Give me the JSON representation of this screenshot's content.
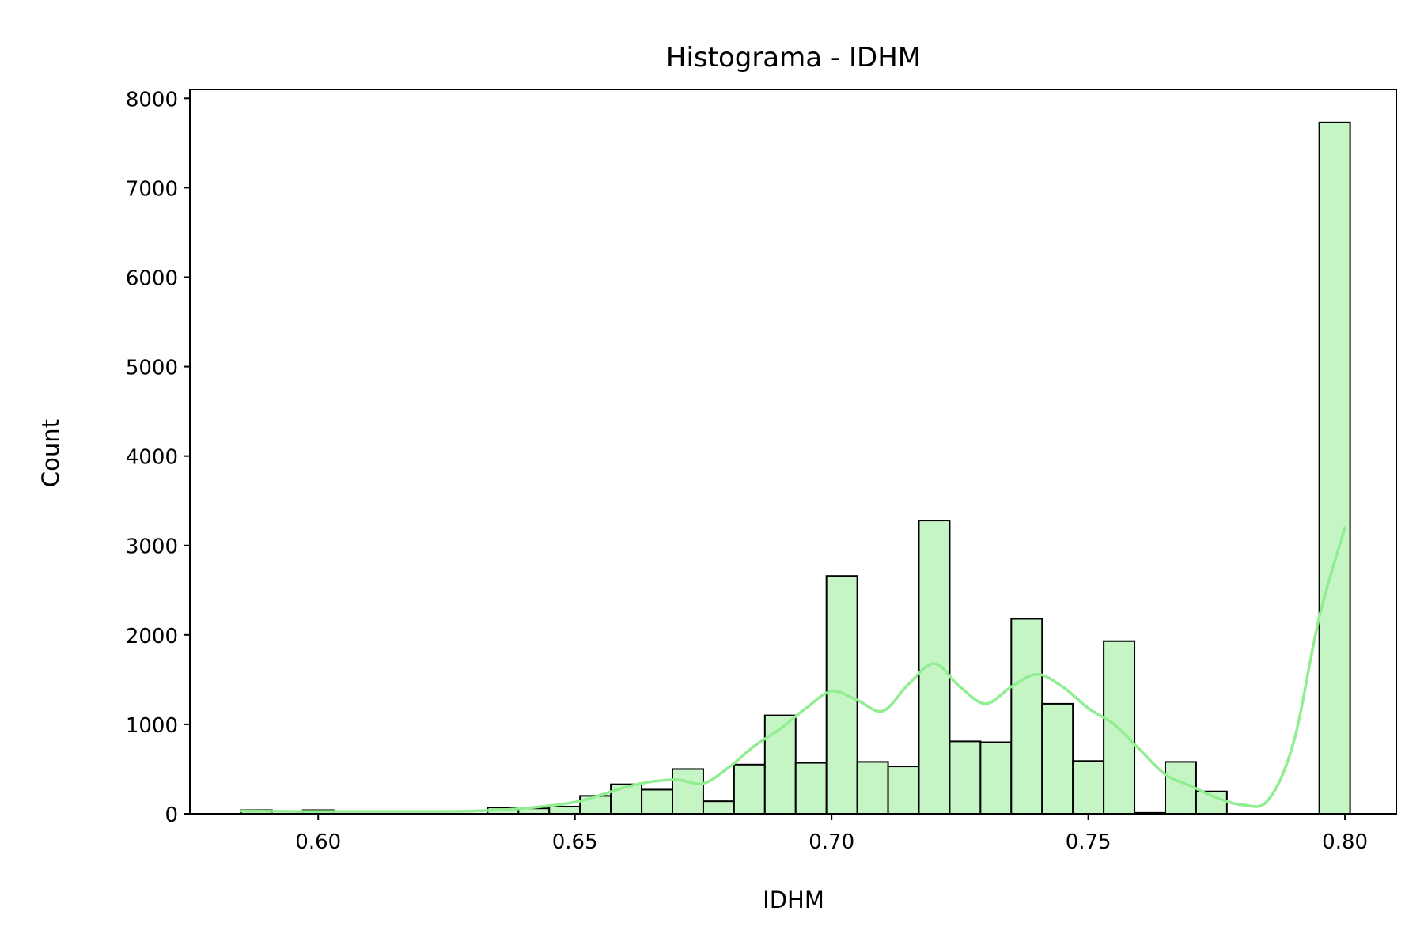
{
  "chart_data": {
    "type": "bar",
    "subtype": "histogram",
    "title": "Histograma - IDHM",
    "xlabel": "IDHM",
    "ylabel": "Count",
    "xlim": [
      0.575,
      0.81
    ],
    "ylim": [
      0,
      8100
    ],
    "xticks": [
      0.6,
      0.65,
      0.7,
      0.75,
      0.8
    ],
    "xtick_labels": [
      "0.60",
      "0.65",
      "0.70",
      "0.75",
      "0.80"
    ],
    "yticks": [
      0,
      1000,
      2000,
      3000,
      4000,
      5000,
      6000,
      7000,
      8000
    ],
    "ytick_labels": [
      "0",
      "1000",
      "2000",
      "3000",
      "4000",
      "5000",
      "6000",
      "7000",
      "8000"
    ],
    "grid": false,
    "legend": "none",
    "bar_color": "#c5f5c5",
    "edge_color": "#000000",
    "kde_color": "#90ee90",
    "bins": [
      {
        "x0": 0.585,
        "x1": 0.591,
        "count": 40
      },
      {
        "x0": 0.591,
        "x1": 0.597,
        "count": 0
      },
      {
        "x0": 0.597,
        "x1": 0.603,
        "count": 40
      },
      {
        "x0": 0.603,
        "x1": 0.609,
        "count": 0
      },
      {
        "x0": 0.609,
        "x1": 0.615,
        "count": 0
      },
      {
        "x0": 0.615,
        "x1": 0.621,
        "count": 0
      },
      {
        "x0": 0.621,
        "x1": 0.627,
        "count": 0
      },
      {
        "x0": 0.627,
        "x1": 0.633,
        "count": 0
      },
      {
        "x0": 0.633,
        "x1": 0.639,
        "count": 70
      },
      {
        "x0": 0.639,
        "x1": 0.645,
        "count": 60
      },
      {
        "x0": 0.645,
        "x1": 0.651,
        "count": 80
      },
      {
        "x0": 0.651,
        "x1": 0.657,
        "count": 200
      },
      {
        "x0": 0.657,
        "x1": 0.663,
        "count": 330
      },
      {
        "x0": 0.663,
        "x1": 0.669,
        "count": 270
      },
      {
        "x0": 0.669,
        "x1": 0.675,
        "count": 500
      },
      {
        "x0": 0.675,
        "x1": 0.681,
        "count": 140
      },
      {
        "x0": 0.681,
        "x1": 0.687,
        "count": 550
      },
      {
        "x0": 0.687,
        "x1": 0.693,
        "count": 1100
      },
      {
        "x0": 0.693,
        "x1": 0.699,
        "count": 570
      },
      {
        "x0": 0.699,
        "x1": 0.705,
        "count": 2660
      },
      {
        "x0": 0.705,
        "x1": 0.711,
        "count": 580
      },
      {
        "x0": 0.711,
        "x1": 0.717,
        "count": 530
      },
      {
        "x0": 0.717,
        "x1": 0.723,
        "count": 3280
      },
      {
        "x0": 0.723,
        "x1": 0.729,
        "count": 810
      },
      {
        "x0": 0.729,
        "x1": 0.735,
        "count": 800
      },
      {
        "x0": 0.735,
        "x1": 0.741,
        "count": 2180
      },
      {
        "x0": 0.741,
        "x1": 0.747,
        "count": 1230
      },
      {
        "x0": 0.747,
        "x1": 0.753,
        "count": 590
      },
      {
        "x0": 0.753,
        "x1": 0.759,
        "count": 1930
      },
      {
        "x0": 0.759,
        "x1": 0.765,
        "count": 10
      },
      {
        "x0": 0.765,
        "x1": 0.771,
        "count": 580
      },
      {
        "x0": 0.771,
        "x1": 0.777,
        "count": 250
      },
      {
        "x0": 0.777,
        "x1": 0.783,
        "count": 0
      },
      {
        "x0": 0.783,
        "x1": 0.789,
        "count": 0
      },
      {
        "x0": 0.789,
        "x1": 0.795,
        "count": 0
      },
      {
        "x0": 0.795,
        "x1": 0.801,
        "count": 7730
      }
    ],
    "kde": {
      "x": [
        0.585,
        0.6,
        0.615,
        0.63,
        0.64,
        0.65,
        0.655,
        0.66,
        0.665,
        0.67,
        0.675,
        0.68,
        0.685,
        0.69,
        0.695,
        0.7,
        0.705,
        0.71,
        0.715,
        0.72,
        0.725,
        0.73,
        0.735,
        0.74,
        0.745,
        0.75,
        0.755,
        0.76,
        0.765,
        0.77,
        0.775,
        0.78,
        0.785,
        0.79,
        0.795,
        0.8
      ],
      "y": [
        30,
        25,
        25,
        30,
        60,
        130,
        210,
        300,
        360,
        380,
        340,
        520,
        760,
        950,
        1180,
        1370,
        1270,
        1150,
        1450,
        1680,
        1420,
        1230,
        1420,
        1560,
        1420,
        1180,
        1000,
        720,
        440,
        310,
        180,
        100,
        150,
        800,
        2200,
        3200
      ]
    }
  }
}
